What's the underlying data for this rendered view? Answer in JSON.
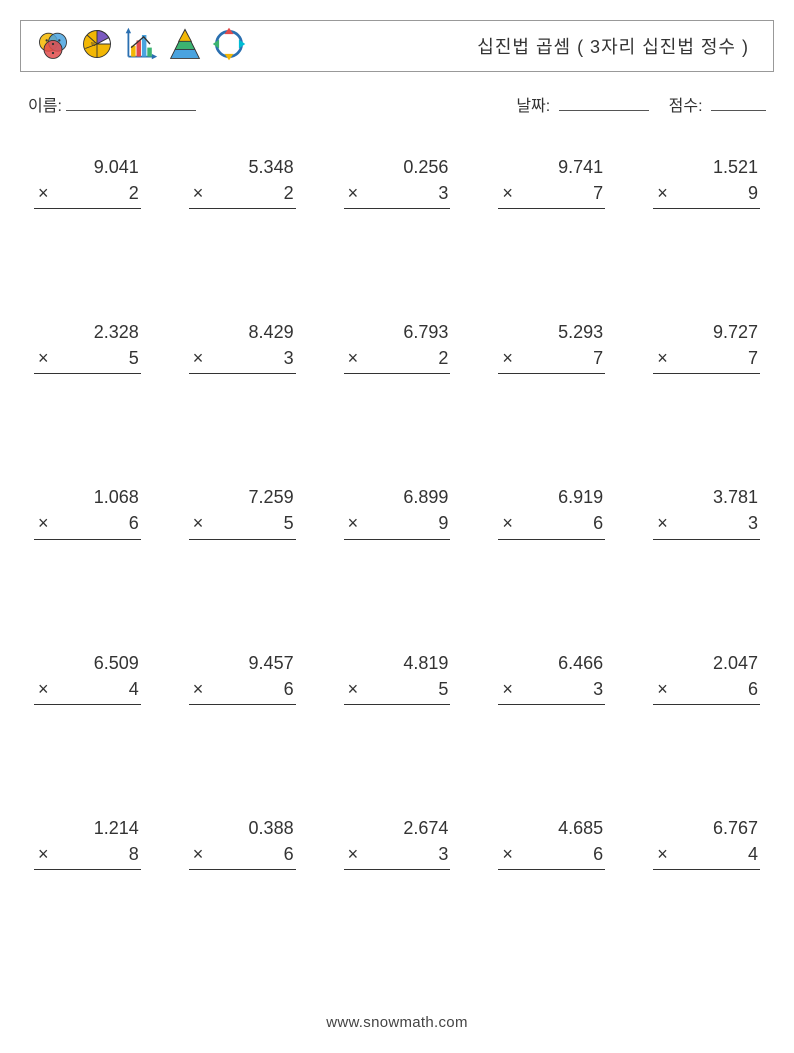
{
  "title": "십진법 곱셈 ( 3자리 십진법 정수 )",
  "labels": {
    "name": "이름:",
    "date": "날짜:",
    "score": "점수:"
  },
  "operator": "×",
  "problems": [
    {
      "a": "9.041",
      "b": "2"
    },
    {
      "a": "5.348",
      "b": "2"
    },
    {
      "a": "0.256",
      "b": "3"
    },
    {
      "a": "9.741",
      "b": "7"
    },
    {
      "a": "1.521",
      "b": "9"
    },
    {
      "a": "2.328",
      "b": "5"
    },
    {
      "a": "8.429",
      "b": "3"
    },
    {
      "a": "6.793",
      "b": "2"
    },
    {
      "a": "5.293",
      "b": "7"
    },
    {
      "a": "9.727",
      "b": "7"
    },
    {
      "a": "1.068",
      "b": "6"
    },
    {
      "a": "7.259",
      "b": "5"
    },
    {
      "a": "6.899",
      "b": "9"
    },
    {
      "a": "6.919",
      "b": "6"
    },
    {
      "a": "3.781",
      "b": "3"
    },
    {
      "a": "6.509",
      "b": "4"
    },
    {
      "a": "9.457",
      "b": "6"
    },
    {
      "a": "4.819",
      "b": "5"
    },
    {
      "a": "6.466",
      "b": "3"
    },
    {
      "a": "2.047",
      "b": "6"
    },
    {
      "a": "1.214",
      "b": "8"
    },
    {
      "a": "0.388",
      "b": "6"
    },
    {
      "a": "2.674",
      "b": "3"
    },
    {
      "a": "4.685",
      "b": "6"
    },
    {
      "a": "6.767",
      "b": "4"
    }
  ],
  "footer": "www.snowmath.com",
  "icons": {
    "venn_colors": [
      "#f7c325",
      "#e24b4b",
      "#4aa3df"
    ],
    "pie_colors": [
      "#7b5ac0",
      "#f2b705",
      "#ffffff"
    ],
    "bar_colors": [
      "#f2b705",
      "#e24b4b",
      "#4aa3df",
      "#3cb371"
    ],
    "bar_axis": "#2a6fb0",
    "tri_colors": [
      "#f2b705",
      "#3cb371",
      "#4aa3df"
    ],
    "cycle_arrow": "#2a6fb0",
    "cycle_nodes": [
      "#e24b4b",
      "#f2b705",
      "#00bcd4",
      "#3cb371"
    ]
  }
}
